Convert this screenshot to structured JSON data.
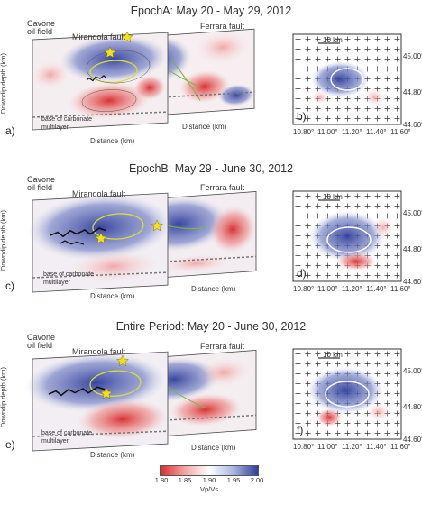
{
  "sections": [
    {
      "title": "EpochA: May 20 - May 29, 2012",
      "letters": [
        "a)",
        "b)"
      ],
      "labels": [
        "Cavone",
        "oil field",
        "Mirandola fault",
        "Ferrara fault",
        "base of carbonate",
        "multilayer"
      ]
    },
    {
      "title": "EpochB: May 29 - June 30, 2012",
      "letters": [
        "c)",
        "d)"
      ],
      "labels": [
        "Cavone",
        "oil field",
        "Mirandola fault",
        "Ferrara fault",
        "base of carbonate",
        "multilayer"
      ]
    },
    {
      "title": "Entire Period: May 20 - June 30, 2012",
      "letters": [
        "e)",
        "f)"
      ],
      "labels": [
        "Cavone",
        "oil field",
        "Mirandola fault",
        "Ferrara fault",
        "base of carbonate",
        "multilayer"
      ]
    }
  ],
  "axes": {
    "ylabel": "Downdip depth (km)",
    "xlabel": "Distance (km)",
    "map_lat": [
      "45.00°",
      "44.80°",
      "44.60°"
    ],
    "map_lon": [
      "10.80°",
      "11.00°",
      "11.20°",
      "11.40°",
      "11.60°"
    ],
    "scale": "10 km"
  },
  "colorbar": {
    "ticks": [
      "1.80",
      "1.85",
      "1.90",
      "1.95",
      "2.00"
    ],
    "label": "Vp/Vs",
    "colors": [
      "#d92c2c",
      "#f3a6a6",
      "#ffffff",
      "#a9b5df",
      "#2f3d9a"
    ]
  }
}
